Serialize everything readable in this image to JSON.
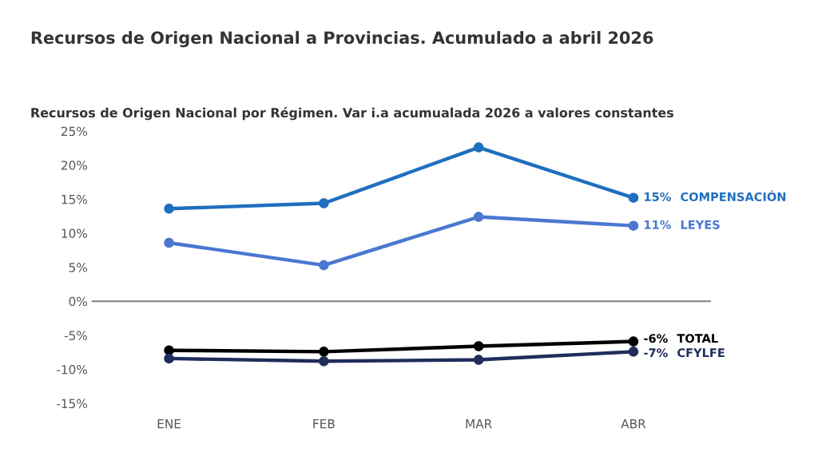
{
  "chart_data": {
    "type": "line",
    "title": "Recursos de Origen Nacional a Provincias. Acumulado a abril 2026",
    "subtitle": "Recursos de Origen Nacional por Régimen. Var i.a acumualada 2026 a valores constantes",
    "categories": [
      "ENE",
      "FEB",
      "MAR",
      "ABR"
    ],
    "series": [
      {
        "name": "COMPENSACIÓN",
        "color": "#1f6fbf",
        "values": [
          13.6,
          14.4,
          22.6,
          15.2
        ],
        "value_labels": [
          null,
          null,
          null,
          "15%"
        ]
      },
      {
        "name": "LEYES",
        "color": "#4a78d0",
        "values": [
          8.6,
          5.3,
          12.4,
          11.1
        ],
        "value_labels": [
          null,
          null,
          null,
          "11%"
        ]
      },
      {
        "name": "TOTAL",
        "color": "#000000",
        "values": [
          -7.2,
          -7.4,
          -6.6,
          -5.9
        ],
        "value_labels": [
          null,
          null,
          null,
          "-6%"
        ]
      },
      {
        "name": "CFYLFE",
        "color": "#1f2d5c",
        "values": [
          -8.4,
          -8.8,
          -8.6,
          -7.4
        ],
        "value_labels": [
          null,
          null,
          null,
          "-7%"
        ]
      }
    ],
    "ylim": [
      -15,
      25
    ],
    "yticks": [
      {
        "value": -15,
        "label": "-15%"
      },
      {
        "value": -10,
        "label": "-10%"
      },
      {
        "value": -5,
        "label": "-5%"
      },
      {
        "value": 0,
        "label": "0%"
      },
      {
        "value": 5,
        "label": "5%"
      },
      {
        "value": 10,
        "label": "10%"
      },
      {
        "value": 15,
        "label": "15%"
      },
      {
        "value": 20,
        "label": "20%"
      },
      {
        "value": 25,
        "label": "25%"
      }
    ],
    "ref_lines": [
      {
        "axis": "y",
        "value": 0,
        "color": "#808080"
      }
    ],
    "marker": "circle",
    "line_style": "solid",
    "grid": false,
    "legend": false
  }
}
